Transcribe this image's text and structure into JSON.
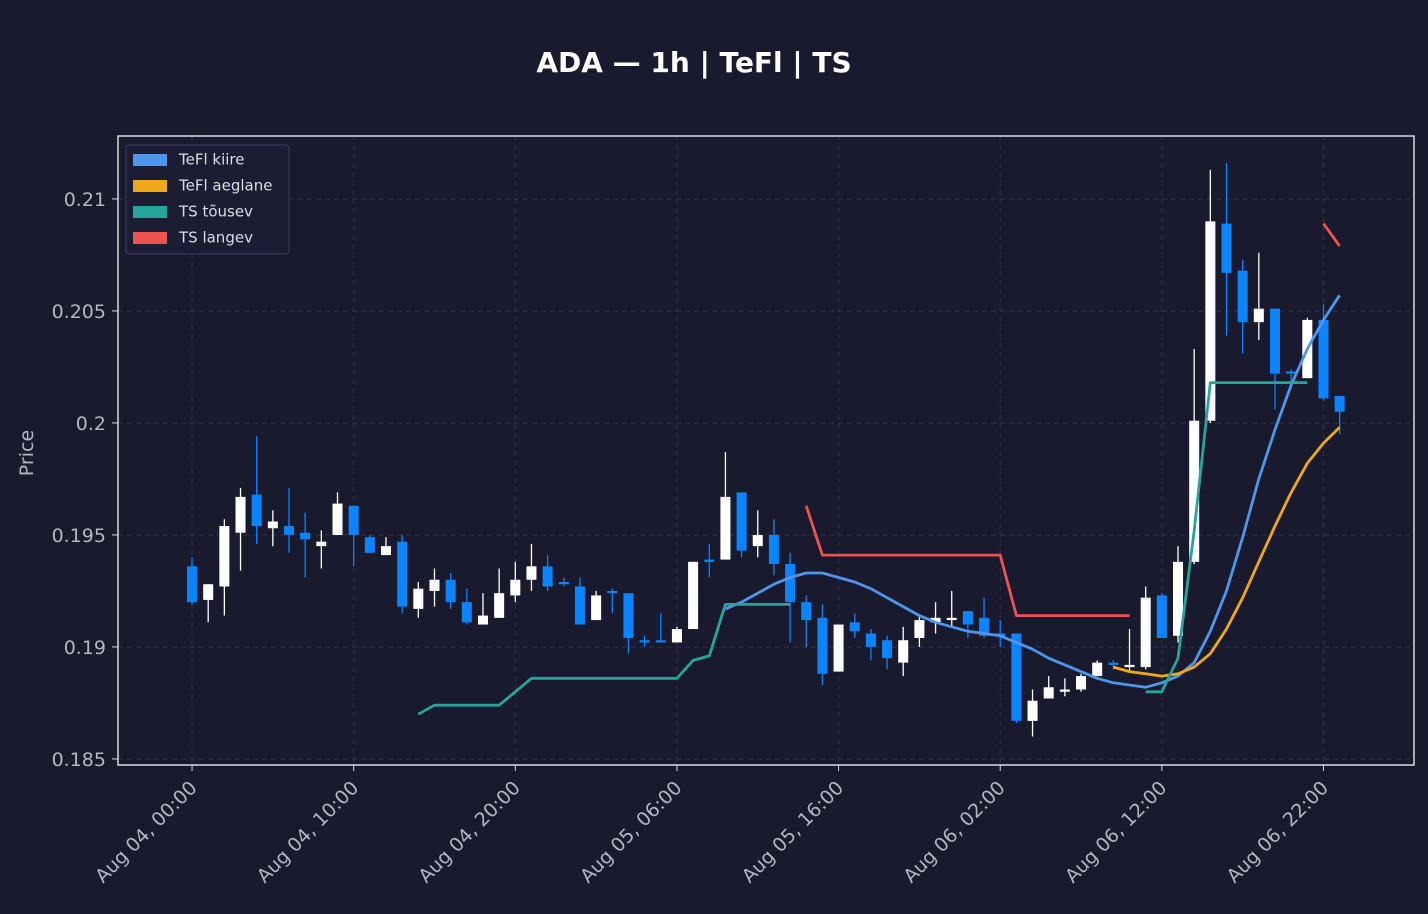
{
  "chart_data": {
    "type": "candlestick",
    "title": "ADA — 1h  |  TeFl  |  TS",
    "ylabel": "Price",
    "x": [
      "Aug 04, 00:00",
      "Aug 04, 01:00",
      "Aug 04, 02:00",
      "Aug 04, 03:00",
      "Aug 04, 04:00",
      "Aug 04, 05:00",
      "Aug 04, 06:00",
      "Aug 04, 07:00",
      "Aug 04, 08:00",
      "Aug 04, 09:00",
      "Aug 04, 10:00",
      "Aug 04, 11:00",
      "Aug 04, 12:00",
      "Aug 04, 13:00",
      "Aug 04, 14:00",
      "Aug 04, 15:00",
      "Aug 04, 16:00",
      "Aug 04, 17:00",
      "Aug 04, 18:00",
      "Aug 04, 19:00",
      "Aug 04, 20:00",
      "Aug 04, 21:00",
      "Aug 04, 22:00",
      "Aug 04, 23:00",
      "Aug 05, 00:00",
      "Aug 05, 01:00",
      "Aug 05, 02:00",
      "Aug 05, 03:00",
      "Aug 05, 04:00",
      "Aug 05, 05:00",
      "Aug 05, 06:00",
      "Aug 05, 07:00",
      "Aug 05, 08:00",
      "Aug 05, 09:00",
      "Aug 05, 10:00",
      "Aug 05, 11:00",
      "Aug 05, 12:00",
      "Aug 05, 13:00",
      "Aug 05, 14:00",
      "Aug 05, 15:00",
      "Aug 05, 16:00",
      "Aug 05, 17:00",
      "Aug 05, 18:00",
      "Aug 05, 19:00",
      "Aug 05, 20:00",
      "Aug 05, 21:00",
      "Aug 05, 22:00",
      "Aug 05, 23:00",
      "Aug 06, 00:00",
      "Aug 06, 01:00",
      "Aug 06, 02:00",
      "Aug 06, 03:00",
      "Aug 06, 04:00",
      "Aug 06, 05:00",
      "Aug 06, 06:00",
      "Aug 06, 07:00",
      "Aug 06, 08:00",
      "Aug 06, 09:00",
      "Aug 06, 10:00",
      "Aug 06, 11:00",
      "Aug 06, 12:00",
      "Aug 06, 13:00",
      "Aug 06, 14:00",
      "Aug 06, 15:00",
      "Aug 06, 16:00",
      "Aug 06, 17:00",
      "Aug 06, 18:00",
      "Aug 06, 19:00",
      "Aug 06, 20:00",
      "Aug 06, 21:00",
      "Aug 06, 22:00",
      "Aug 06, 23:00"
    ],
    "open": [
      0.1936,
      0.1921,
      0.1927,
      0.1951,
      0.1968,
      0.1953,
      0.1954,
      0.1951,
      0.1945,
      0.195,
      0.1963,
      0.1949,
      0.1941,
      0.1947,
      0.1917,
      0.1925,
      0.193,
      0.192,
      0.191,
      0.1913,
      0.1923,
      0.193,
      0.1936,
      0.1929,
      0.1927,
      0.1912,
      0.1925,
      0.1924,
      0.1903,
      0.1903,
      0.1902,
      0.1908,
      0.1939,
      0.1939,
      0.1969,
      0.1945,
      0.195,
      0.1937,
      0.192,
      0.1913,
      0.1889,
      0.1911,
      0.1906,
      0.1903,
      0.1893,
      0.1904,
      0.1911,
      0.1912,
      0.1916,
      0.1913,
      0.1906,
      0.1906,
      0.1867,
      0.1877,
      0.188,
      0.1881,
      0.1887,
      0.1893,
      0.1891,
      0.1891,
      0.1923,
      0.1905,
      0.1938,
      0.2001,
      0.2089,
      0.2068,
      0.2045,
      0.2051,
      0.2023,
      0.202,
      0.2046,
      0.2012
    ],
    "high": [
      0.194,
      0.1928,
      0.1957,
      0.1971,
      0.1994,
      0.1961,
      0.1971,
      0.196,
      0.1952,
      0.1969,
      0.1963,
      0.195,
      0.1949,
      0.195,
      0.1929,
      0.1935,
      0.1933,
      0.1926,
      0.1924,
      0.1935,
      0.1938,
      0.1946,
      0.1941,
      0.1931,
      0.1931,
      0.1925,
      0.1926,
      0.1924,
      0.1905,
      0.1915,
      0.1909,
      0.1938,
      0.1946,
      0.1987,
      0.1969,
      0.1961,
      0.1957,
      0.1942,
      0.1923,
      0.1919,
      0.191,
      0.1915,
      0.1908,
      0.1905,
      0.1909,
      0.1914,
      0.192,
      0.1925,
      0.1916,
      0.1922,
      0.1912,
      0.1906,
      0.1881,
      0.1887,
      0.1886,
      0.1888,
      0.1894,
      0.1894,
      0.1908,
      0.1927,
      0.1924,
      0.1945,
      0.2033,
      0.2113,
      0.2116,
      0.2073,
      0.2076,
      0.2051,
      0.2024,
      0.2047,
      0.2053,
      0.2012
    ],
    "low": [
      0.1919,
      0.1911,
      0.1914,
      0.1934,
      0.1946,
      0.1945,
      0.1942,
      0.1931,
      0.1935,
      0.195,
      0.1936,
      0.1942,
      0.1941,
      0.1915,
      0.1913,
      0.1918,
      0.1917,
      0.191,
      0.191,
      0.1913,
      0.192,
      0.1925,
      0.1925,
      0.1927,
      0.191,
      0.1912,
      0.1915,
      0.1897,
      0.19,
      0.1902,
      0.1902,
      0.1908,
      0.1931,
      0.1939,
      0.194,
      0.194,
      0.1932,
      0.1902,
      0.19,
      0.1883,
      0.1889,
      0.1904,
      0.1894,
      0.189,
      0.1887,
      0.19,
      0.1906,
      0.1909,
      0.1904,
      0.1904,
      0.19,
      0.1866,
      0.186,
      0.1877,
      0.1878,
      0.188,
      0.1887,
      0.189,
      0.1889,
      0.189,
      0.1904,
      0.1902,
      0.1937,
      0.2,
      0.2039,
      0.2031,
      0.2037,
      0.2006,
      0.2015,
      0.202,
      0.201,
      0.1995
    ],
    "close": [
      0.192,
      0.1928,
      0.1954,
      0.1967,
      0.1954,
      0.1956,
      0.195,
      0.1948,
      0.1947,
      0.1964,
      0.195,
      0.1942,
      0.1945,
      0.1918,
      0.1926,
      0.193,
      0.192,
      0.1911,
      0.1914,
      0.1924,
      0.193,
      0.1936,
      0.1927,
      0.1928,
      0.191,
      0.1923,
      0.1924,
      0.1904,
      0.1902,
      0.1902,
      0.1908,
      0.1938,
      0.1938,
      0.1967,
      0.1943,
      0.195,
      0.1937,
      0.192,
      0.1912,
      0.1888,
      0.191,
      0.1907,
      0.19,
      0.1895,
      0.1903,
      0.1912,
      0.1913,
      0.1913,
      0.191,
      0.1905,
      0.1905,
      0.1867,
      0.1876,
      0.1882,
      0.1881,
      0.1887,
      0.1893,
      0.1892,
      0.1892,
      0.1922,
      0.1904,
      0.1938,
      0.2001,
      0.209,
      0.2067,
      0.2045,
      0.2051,
      0.2022,
      0.2022,
      0.2046,
      0.2011,
      0.2005
    ],
    "up_color": "#ffffff",
    "down_color": "#0a84ff",
    "series": [
      {
        "name": "TeFl kiire",
        "color": "#4e97ec",
        "values": [
          null,
          null,
          null,
          null,
          null,
          null,
          null,
          null,
          null,
          null,
          null,
          null,
          null,
          null,
          null,
          null,
          null,
          null,
          null,
          null,
          null,
          null,
          null,
          null,
          null,
          null,
          null,
          null,
          null,
          null,
          null,
          null,
          null,
          0.1917,
          0.192,
          0.1924,
          0.1928,
          0.1931,
          0.1933,
          0.1933,
          0.1931,
          0.1929,
          0.1926,
          0.1922,
          0.1918,
          0.1914,
          0.1911,
          0.1909,
          0.1907,
          0.1906,
          0.1905,
          0.1902,
          0.1899,
          0.1895,
          0.1892,
          0.1889,
          0.1886,
          0.1884,
          0.1883,
          0.1882,
          0.1884,
          0.1887,
          0.1893,
          0.1907,
          0.1925,
          0.1949,
          0.1975,
          0.1997,
          0.2017,
          0.2033,
          0.2046,
          0.2057
        ]
      },
      {
        "name": "TeFl aeglane",
        "color": "#f0a81a",
        "values": [
          null,
          null,
          null,
          null,
          null,
          null,
          null,
          null,
          null,
          null,
          null,
          null,
          null,
          null,
          null,
          null,
          null,
          null,
          null,
          null,
          null,
          null,
          null,
          null,
          null,
          null,
          null,
          null,
          null,
          null,
          null,
          null,
          null,
          null,
          null,
          null,
          null,
          null,
          null,
          null,
          null,
          null,
          null,
          null,
          null,
          null,
          null,
          null,
          null,
          null,
          null,
          null,
          null,
          null,
          null,
          null,
          null,
          0.1891,
          0.1889,
          0.1888,
          0.1887,
          0.1888,
          0.1891,
          0.1897,
          0.1908,
          0.1922,
          0.1938,
          0.1954,
          0.1969,
          0.1982,
          0.1991,
          0.1998
        ]
      },
      {
        "name": "TS tõusev",
        "color": "#26a69a",
        "values": [
          null,
          null,
          null,
          null,
          null,
          null,
          null,
          null,
          null,
          null,
          null,
          null,
          null,
          null,
          0.187,
          0.1874,
          0.1874,
          0.1874,
          0.1874,
          0.1874,
          0.188,
          0.1886,
          0.1886,
          0.1886,
          0.1886,
          0.1886,
          0.1886,
          0.1886,
          0.1886,
          0.1886,
          0.1886,
          0.1894,
          0.1896,
          0.1919,
          0.1919,
          0.1919,
          0.1919,
          0.1919,
          null,
          null,
          null,
          null,
          null,
          null,
          null,
          null,
          null,
          null,
          null,
          null,
          null,
          null,
          null,
          null,
          null,
          null,
          null,
          null,
          null,
          0.188,
          0.188,
          0.1895,
          0.1952,
          0.2018,
          0.2018,
          0.2018,
          0.2018,
          0.2018,
          0.2018,
          0.2018,
          null,
          null
        ]
      },
      {
        "name": "TS langev",
        "color": "#ef5350",
        "values": [
          null,
          null,
          null,
          null,
          null,
          null,
          null,
          null,
          null,
          null,
          null,
          null,
          null,
          null,
          null,
          null,
          null,
          null,
          null,
          null,
          null,
          null,
          null,
          null,
          null,
          null,
          null,
          null,
          null,
          null,
          null,
          null,
          null,
          null,
          null,
          null,
          null,
          null,
          0.1963,
          0.1941,
          0.1941,
          0.1941,
          0.1941,
          0.1941,
          0.1941,
          0.1941,
          0.1941,
          0.1941,
          0.1941,
          0.1941,
          0.1941,
          0.1914,
          0.1914,
          0.1914,
          0.1914,
          0.1914,
          0.1914,
          0.1914,
          0.1914,
          null,
          null,
          null,
          null,
          null,
          null,
          null,
          null,
          null,
          null,
          null,
          0.2089,
          0.2079
        ]
      }
    ],
    "ylim": [
      0.18473,
      0.21281
    ],
    "yticks": [
      0.185,
      0.19,
      0.195,
      0.2,
      0.205,
      0.21
    ],
    "xticks": [
      "Aug 04, 00:00",
      "Aug 04, 10:00",
      "Aug 04, 20:00",
      "Aug 05, 06:00",
      "Aug 05, 16:00",
      "Aug 06, 02:00",
      "Aug 06, 12:00",
      "Aug 06, 22:00"
    ],
    "grid": true,
    "legend": "upper left"
  }
}
